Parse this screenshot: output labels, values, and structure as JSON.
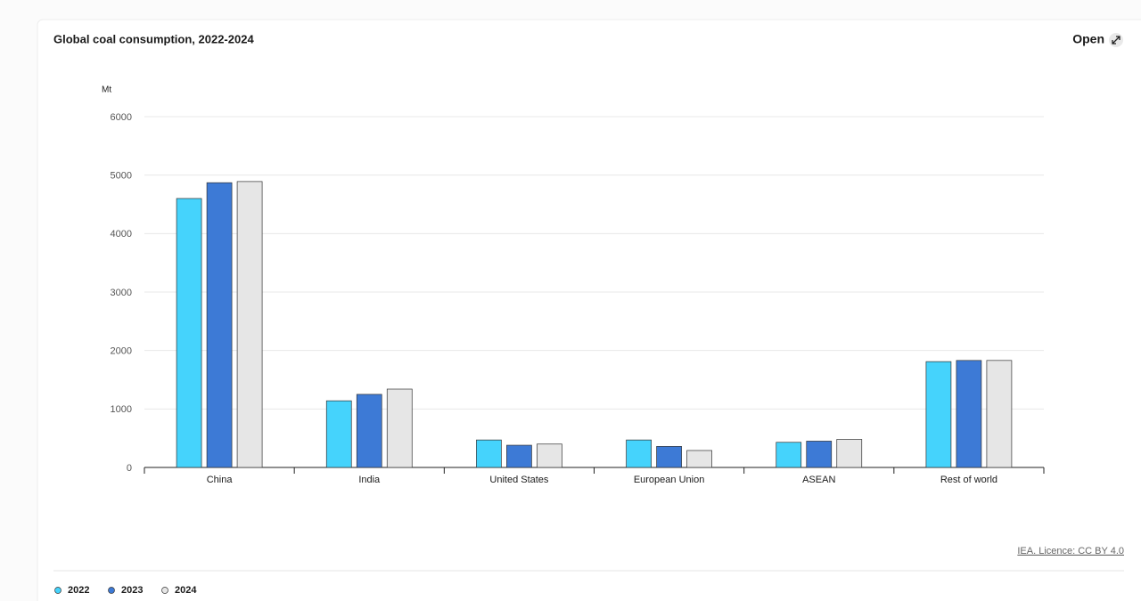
{
  "chart_data": {
    "type": "bar",
    "title": "Global coal consumption, 2022-2024",
    "y_label": "Mt",
    "categories": [
      "China",
      "India",
      "United States",
      "European Union",
      "ASEAN",
      "Rest of world"
    ],
    "series": [
      {
        "name": "2022",
        "color": "#45d3fc",
        "values": [
          4600,
          1140,
          470,
          470,
          430,
          1810
        ]
      },
      {
        "name": "2023",
        "color": "#3d7ad6",
        "values": [
          4870,
          1250,
          380,
          360,
          450,
          1830
        ]
      },
      {
        "name": "2024",
        "color": "#e6e6e6",
        "values": [
          4890,
          1340,
          400,
          290,
          480,
          1830
        ]
      }
    ],
    "ylim": [
      0,
      6000
    ],
    "yticks": [
      0,
      1000,
      2000,
      3000,
      4000,
      5000,
      6000
    ],
    "grid": true,
    "legend": "bottom-left",
    "source": "IEA. Licence: CC BY 4.0"
  },
  "ui": {
    "open": "Open"
  }
}
